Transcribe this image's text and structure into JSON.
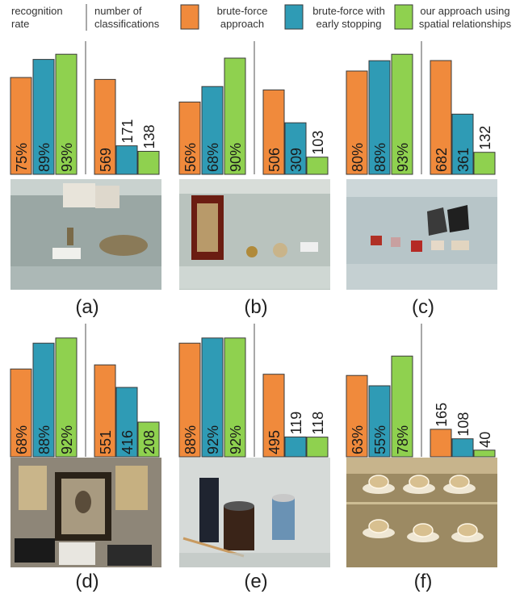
{
  "legend": {
    "recognition_rate_line1": "recognition",
    "recognition_rate_line2": "rate",
    "classifications_line1": "number of",
    "classifications_line2": "classifications",
    "series": [
      {
        "line1": "brute-force",
        "line2": "approach",
        "color": "#f08a3c"
      },
      {
        "line1": "brute-force with",
        "line2": "early stopping",
        "color": "#2f9bb5"
      },
      {
        "line1": "our approach using",
        "line2": "spatial relationships",
        "color": "#8fd14f"
      }
    ]
  },
  "colors": {
    "brute_force": "#f08a3c",
    "early_stopping": "#2f9bb5",
    "spatial": "#8fd14f",
    "divider": "#a8a8a8",
    "bar_border": "#3a3a3a"
  },
  "chart_data": [
    {
      "type": "bar",
      "panel": "(a)",
      "categories": [
        "brute-force approach",
        "brute-force with early stopping",
        "our approach using spatial relationships"
      ],
      "recognition_rate": {
        "values": [
          75,
          89,
          93
        ],
        "labels": [
          "75%",
          "89%",
          "93%"
        ],
        "ylim": [
          0,
          100
        ]
      },
      "classifications": {
        "values": [
          569,
          171,
          138
        ],
        "labels": [
          "569",
          "171",
          "138"
        ]
      }
    },
    {
      "type": "bar",
      "panel": "(b)",
      "categories": [
        "brute-force approach",
        "brute-force with early stopping",
        "our approach using spatial relationships"
      ],
      "recognition_rate": {
        "values": [
          56,
          68,
          90
        ],
        "labels": [
          "56%",
          "68%",
          "90%"
        ],
        "ylim": [
          0,
          100
        ]
      },
      "classifications": {
        "values": [
          506,
          309,
          103
        ],
        "labels": [
          "506",
          "309",
          "103"
        ]
      }
    },
    {
      "type": "bar",
      "panel": "(c)",
      "categories": [
        "brute-force approach",
        "brute-force with early stopping",
        "our approach using spatial relationships"
      ],
      "recognition_rate": {
        "values": [
          80,
          88,
          93
        ],
        "labels": [
          "80%",
          "88%",
          "93%"
        ],
        "ylim": [
          0,
          100
        ]
      },
      "classifications": {
        "values": [
          682,
          361,
          132
        ],
        "labels": [
          "682",
          "361",
          "132"
        ]
      }
    },
    {
      "type": "bar",
      "panel": "(d)",
      "categories": [
        "brute-force approach",
        "brute-force with early stopping",
        "our approach using spatial relationships"
      ],
      "recognition_rate": {
        "values": [
          68,
          88,
          92
        ],
        "labels": [
          "68%",
          "88%",
          "92%"
        ],
        "ylim": [
          0,
          100
        ]
      },
      "classifications": {
        "values": [
          551,
          416,
          208
        ],
        "labels": [
          "551",
          "416",
          "208"
        ]
      }
    },
    {
      "type": "bar",
      "panel": "(e)",
      "categories": [
        "brute-force approach",
        "brute-force with early stopping",
        "our approach using spatial relationships"
      ],
      "recognition_rate": {
        "values": [
          88,
          92,
          92
        ],
        "labels": [
          "88%",
          "92%",
          "92%"
        ],
        "ylim": [
          0,
          100
        ]
      },
      "classifications": {
        "values": [
          495,
          119,
          118
        ],
        "labels": [
          "495",
          "119",
          "118"
        ]
      }
    },
    {
      "type": "bar",
      "panel": "(f)",
      "categories": [
        "brute-force approach",
        "brute-force with early stopping",
        "our approach using spatial relationships"
      ],
      "recognition_rate": {
        "values": [
          63,
          55,
          78
        ],
        "labels": [
          "63%",
          "55%",
          "78%"
        ],
        "ylim": [
          0,
          100
        ]
      },
      "classifications": {
        "values": [
          165,
          108,
          40
        ],
        "labels": [
          "165",
          "108",
          "40"
        ]
      }
    }
  ],
  "photos": [
    {
      "panel": "(a)",
      "scene": "display-case-documents-and-scale"
    },
    {
      "panel": "(b)",
      "scene": "display-case-medals"
    },
    {
      "panel": "(c)",
      "scene": "glass-shelf-small-objects"
    },
    {
      "panel": "(d)",
      "scene": "framed-portrait-and-pictures"
    },
    {
      "panel": "(e)",
      "scene": "antique-lanterns-and-milk-can"
    },
    {
      "panel": "(f)",
      "scene": "glass-shelves-with-cups"
    }
  ]
}
